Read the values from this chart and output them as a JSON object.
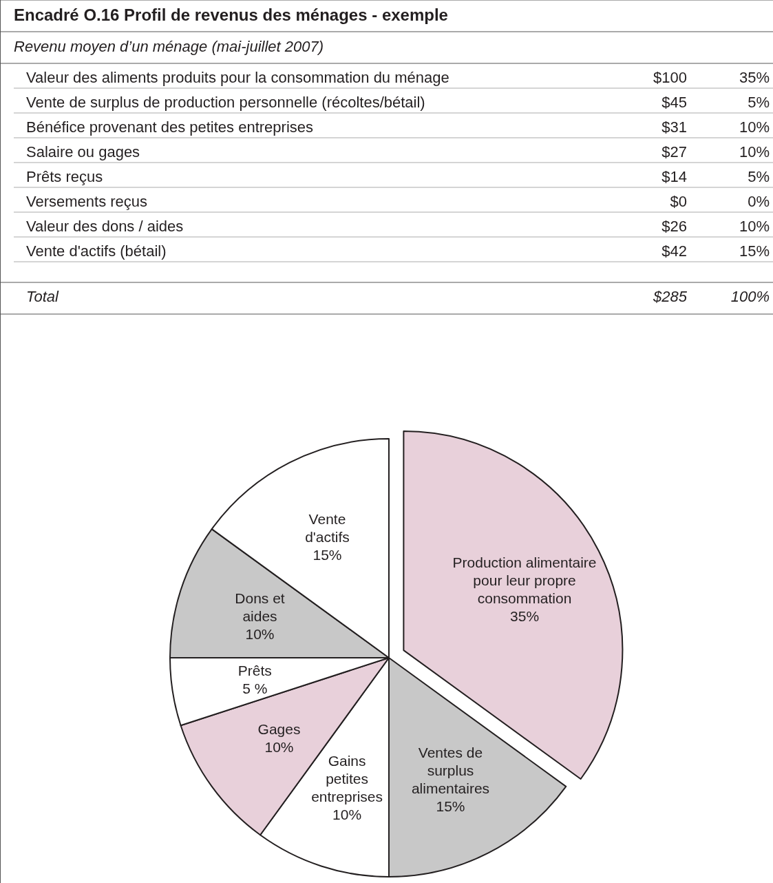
{
  "chart_data": [
    {
      "type": "other",
      "title": "Encadré O.16 Profil de revenus des ménages - exemple",
      "subtitle": "Revenu moyen d’un ménage (mai-juillet 2007)",
      "annotations": [
        "Valeur des aliments produits pour la consommation du ménage",
        "$100",
        "35%",
        "Vente de surplus de production personnelle (récoltes/bétail)",
        "$45",
        "5%",
        "Bénéfice provenant des petites entreprises",
        "$31",
        "10%",
        "Salaire ou gages",
        "$27",
        "10%",
        "Prêts reçus",
        "$14",
        "5%",
        "Versements reçus",
        "$0",
        "0%",
        "Valeur des dons / aides",
        "$26",
        "10%",
        "Vente d'actifs (bétail)",
        "$42",
        "15%",
        "Total",
        "$285",
        "100%"
      ]
    },
    {
      "type": "pie",
      "categories": [
        "Production alimentaire pour leur propre consommation",
        "Ventes de surplus alimentaires",
        "Gains petites entreprises",
        "Gages",
        "Prêts",
        "Dons et aides",
        "Vente d'actifs"
      ],
      "values": [
        35,
        15,
        10,
        10,
        5,
        10,
        15
      ],
      "value_labels": [
        "35%",
        "15%",
        "10%",
        "10%",
        "5 %",
        "10%",
        "15%"
      ],
      "colors": [
        "#e8d0da",
        "#c8c8c8",
        "#ffffff",
        "#e8d0da",
        "#ffffff",
        "#c8c8c8",
        "#ffffff"
      ]
    }
  ]
}
